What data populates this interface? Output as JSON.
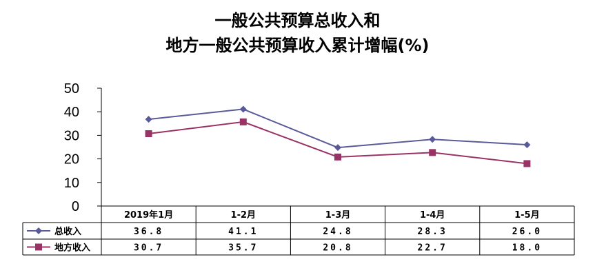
{
  "title": {
    "line1": "一般公共预算总收入和",
    "line2": "地方一般公共预算收入累计增幅(%)"
  },
  "chart_data": {
    "type": "line",
    "categories": [
      "2019年1月",
      "1-2月",
      "1-3月",
      "1-4月",
      "1-5月"
    ],
    "series": [
      {
        "name": "总收入",
        "values": [
          36.8,
          41.1,
          24.8,
          28.3,
          26.0
        ],
        "display": [
          "36.8",
          "41.1",
          "24.8",
          "28.3",
          "26.0"
        ],
        "color": "#5a5a9a",
        "marker": "diamond"
      },
      {
        "name": "地方收入",
        "values": [
          30.7,
          35.7,
          20.8,
          22.7,
          18.0
        ],
        "display": [
          "30.7",
          "35.7",
          "20.8",
          "22.7",
          "18.0"
        ],
        "color": "#993366",
        "marker": "square"
      }
    ],
    "ylim": [
      0,
      50
    ],
    "yticks": [
      "0",
      "10",
      "20",
      "30",
      "40",
      "50"
    ],
    "grid": false,
    "legend": "data-table"
  }
}
